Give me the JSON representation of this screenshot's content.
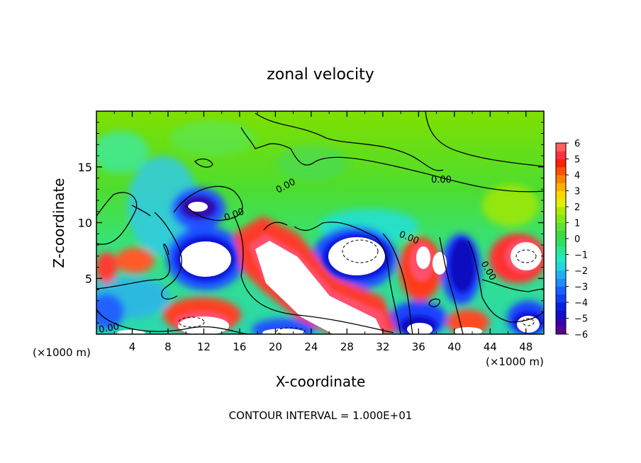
{
  "chart_data": {
    "type": "heatmap",
    "title": "zonal velocity",
    "xlabel": "X-coordinate",
    "ylabel": "Z-coordinate",
    "x_unit": "(×1000 m)",
    "y_unit": "(×1000 m)",
    "xlim": [
      0,
      50
    ],
    "ylim": [
      0,
      20
    ],
    "x_ticks": [
      4,
      8,
      12,
      16,
      20,
      24,
      28,
      32,
      36,
      40,
      44,
      48
    ],
    "y_ticks": [
      5,
      10,
      15
    ],
    "colorbar": {
      "min": -6,
      "max": 6,
      "ticks": [
        6,
        5,
        4,
        3,
        2,
        1,
        0,
        -1,
        -2,
        -3,
        -4,
        -5,
        -6
      ]
    },
    "contour_labels": [
      "0.00",
      "0.00",
      "0.00",
      "0.00",
      "0.00",
      "0.00"
    ],
    "contour_interval_note": "CONTOUR INTERVAL = 1.000E+01",
    "features": [
      {
        "kind": "negative-core",
        "x": 11.5,
        "z": 6.5,
        "value": -8
      },
      {
        "kind": "negative-core",
        "x": 11.5,
        "z": 11.6,
        "value": -6
      },
      {
        "kind": "negative-core",
        "x": 29.0,
        "z": 6.8,
        "value": -9
      },
      {
        "kind": "negative-core",
        "x": 39.8,
        "z": 6.5,
        "value": -7
      },
      {
        "kind": "negative-core",
        "x": 36.5,
        "z": 1.0,
        "value": -7
      },
      {
        "kind": "negative-core",
        "x": 48.5,
        "z": 1.5,
        "value": -7
      },
      {
        "kind": "positive-band",
        "x": 23.0,
        "z": 5.5,
        "value": 9
      },
      {
        "kind": "positive-core",
        "x": 36.5,
        "z": 7.0,
        "value": 8
      },
      {
        "kind": "positive-core",
        "x": 47.5,
        "z": 6.5,
        "value": 8
      },
      {
        "kind": "positive-core",
        "x": 5.0,
        "z": 6.8,
        "value": 5
      },
      {
        "kind": "positive-core",
        "x": 11.5,
        "z": 1.8,
        "value": 8
      },
      {
        "kind": "positive-core",
        "x": 44.5,
        "z": 1.0,
        "value": 7
      },
      {
        "kind": "positive-core",
        "x": 34.0,
        "z": 8.5,
        "value": 6
      }
    ]
  }
}
